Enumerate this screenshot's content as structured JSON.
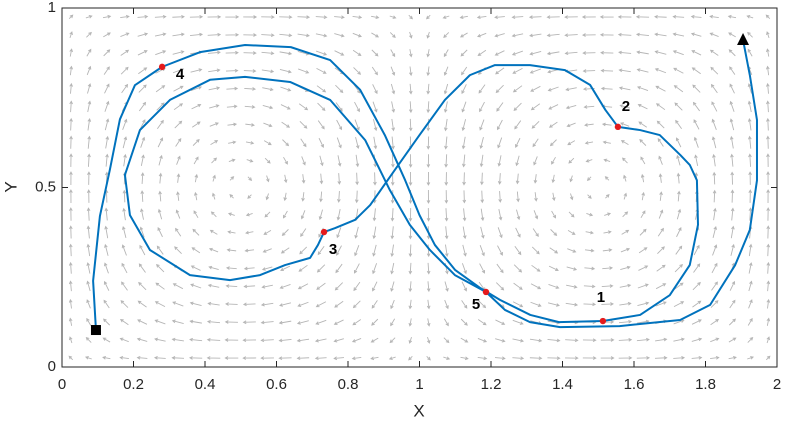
{
  "chart_data": {
    "type": "line",
    "xlabel": "X",
    "ylabel": "Y",
    "xlim": [
      0,
      2
    ],
    "ylim": [
      0,
      1
    ],
    "xticks": [
      0,
      0.2,
      0.4,
      0.6,
      0.8,
      1,
      1.2,
      1.4,
      1.6,
      1.8,
      2
    ],
    "yticks": [
      0,
      0.5,
      1
    ],
    "series": [
      {
        "color": "#0072bd",
        "x": [
          0.095,
          0.087,
          0.106,
          0.134,
          0.162,
          0.204,
          0.28,
          0.386,
          0.512,
          0.64,
          0.75,
          0.834,
          0.903,
          0.96,
          1.0,
          1.043,
          1.1,
          1.17,
          1.225,
          1.31,
          1.39,
          1.513,
          1.617,
          1.7,
          1.756,
          1.779,
          1.776,
          1.756,
          1.73,
          1.672,
          1.617,
          1.555,
          1.52,
          1.477,
          1.407,
          1.309,
          1.211,
          1.141,
          1.071,
          1.0,
          0.931,
          0.862,
          0.82,
          0.764,
          0.733,
          0.716,
          0.694,
          0.624,
          0.554,
          0.47,
          0.358,
          0.246,
          0.19,
          0.176,
          0.218,
          0.302,
          0.414,
          0.512,
          0.638,
          0.75,
          0.848,
          0.917,
          0.973,
          1.029,
          1.099,
          1.186,
          1.239,
          1.309,
          1.393,
          1.56,
          1.729,
          1.813,
          1.883,
          1.924,
          1.944,
          1.944,
          1.924,
          1.905
        ],
        "values": [
          0.103,
          0.24,
          0.42,
          0.55,
          0.69,
          0.785,
          0.836,
          0.877,
          0.897,
          0.891,
          0.855,
          0.772,
          0.646,
          0.52,
          0.423,
          0.34,
          0.27,
          0.22,
          0.187,
          0.145,
          0.125,
          0.128,
          0.145,
          0.2,
          0.284,
          0.396,
          0.52,
          0.563,
          0.59,
          0.646,
          0.66,
          0.669,
          0.716,
          0.786,
          0.827,
          0.841,
          0.841,
          0.813,
          0.744,
          0.646,
          0.549,
          0.451,
          0.41,
          0.387,
          0.376,
          0.34,
          0.304,
          0.284,
          0.256,
          0.242,
          0.256,
          0.326,
          0.423,
          0.535,
          0.66,
          0.744,
          0.8,
          0.808,
          0.794,
          0.744,
          0.632,
          0.493,
          0.396,
          0.326,
          0.256,
          0.209,
          0.159,
          0.125,
          0.111,
          0.114,
          0.131,
          0.173,
          0.284,
          0.382,
          0.52,
          0.688,
          0.813,
          0.911
        ]
      }
    ],
    "annotations": [
      {
        "text": "1",
        "x": 1.513,
        "y": 0.128,
        "color": "#e41a1c"
      },
      {
        "text": "2",
        "x": 1.555,
        "y": 0.669,
        "color": "#e41a1c"
      },
      {
        "text": "3",
        "x": 0.733,
        "y": 0.376,
        "color": "#e41a1c"
      },
      {
        "text": "4",
        "x": 0.28,
        "y": 0.836,
        "color": "#e41a1c"
      },
      {
        "text": "5",
        "x": 1.186,
        "y": 0.209,
        "color": "#e41a1c"
      }
    ]
  }
}
